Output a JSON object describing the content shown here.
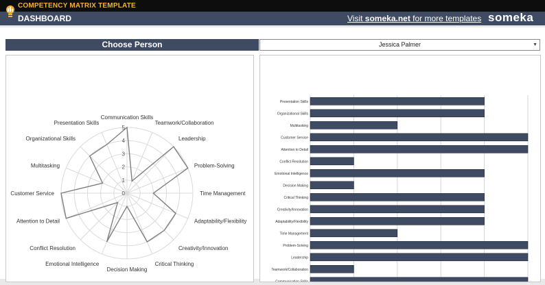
{
  "header": {
    "app_title": "COMPETENCY MATRIX TEMPLATE",
    "page_title": "DASHBOARD",
    "visit_prefix": "Visit ",
    "visit_site": "someka.net",
    "visit_suffix": " for more templates",
    "brand": "someka"
  },
  "selector": {
    "label": "Choose Person",
    "value": "Jessica Palmer"
  },
  "colors": {
    "header_bg": "#3f4b63",
    "accent": "#f2b134",
    "bar_fill": "#3f4b63"
  },
  "chart_data": [
    {
      "type": "radar",
      "categories": [
        "Communication Skills",
        "Teamwork/Collaboration",
        "Leadership",
        "Problem-Solving",
        "Time Management",
        "Adaptability/Flexibility",
        "Creativity/Innovation",
        "Critical Thinking",
        "Decision Making",
        "Emotional Intelligence",
        "Conflict Resolution",
        "Attention to Detail",
        "Customer Service",
        "Multitasking",
        "Organizational Skills",
        "Presentation Skills"
      ],
      "values": [
        5,
        1,
        5,
        5,
        2,
        4,
        4,
        4,
        1,
        4,
        1,
        5,
        5,
        2,
        4,
        4
      ],
      "ticks": [
        "0",
        "1",
        "2",
        "3",
        "4",
        "5"
      ],
      "range": [
        0,
        5
      ]
    },
    {
      "type": "bar",
      "orientation": "horizontal",
      "categories": [
        "Presentation Skills",
        "Organizational Skills",
        "Multitasking",
        "Customer Service",
        "Attention to Detail",
        "Conflict Resolution",
        "Emotional Intelligence",
        "Decision Making",
        "Critical Thinking",
        "Creativity/Innovation",
        "Adaptability/Flexibility",
        "Time Management",
        "Problem-Solving",
        "Leadership",
        "Teamwork/Collaboration",
        "Communication Skills"
      ],
      "values": [
        4,
        4,
        2,
        5,
        5,
        1,
        4,
        1,
        4,
        4,
        4,
        2,
        5,
        5,
        1,
        5
      ],
      "ticks": [
        "0",
        "1",
        "2",
        "3",
        "4",
        "5"
      ],
      "xlim": [
        0,
        5
      ],
      "grid": true
    }
  ]
}
